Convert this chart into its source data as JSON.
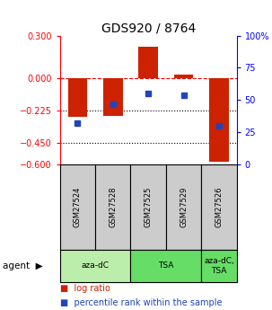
{
  "title": "GDS920 / 8764",
  "samples": [
    "GSM27524",
    "GSM27528",
    "GSM27525",
    "GSM27529",
    "GSM27526"
  ],
  "log_ratios": [
    -0.27,
    -0.26,
    0.22,
    0.03,
    -0.58
  ],
  "percentile_ranks": [
    32,
    47,
    55,
    54,
    30
  ],
  "ylim_left": [
    -0.6,
    0.3
  ],
  "ylim_right": [
    0,
    100
  ],
  "yticks_left": [
    0.3,
    0,
    -0.225,
    -0.45,
    -0.6
  ],
  "yticks_right": [
    100,
    75,
    50,
    25,
    0
  ],
  "hlines": [
    0,
    -0.225,
    -0.45
  ],
  "hline_styles": [
    "dashed",
    "dotted",
    "dotted"
  ],
  "hline_colors": [
    "red",
    "black",
    "black"
  ],
  "bar_color": "#cc2200",
  "dot_color": "#2244bb",
  "agent_groups": [
    {
      "label": "aza-dC",
      "start": 0,
      "end": 2,
      "color": "#bbeeaa"
    },
    {
      "label": "TSA",
      "start": 2,
      "end": 4,
      "color": "#66dd66"
    },
    {
      "label": "aza-dC,\nTSA",
      "start": 4,
      "end": 5,
      "color": "#66dd66"
    }
  ],
  "bar_width": 0.55,
  "sample_box_color": "#cccccc",
  "bg_color": "#ffffff"
}
